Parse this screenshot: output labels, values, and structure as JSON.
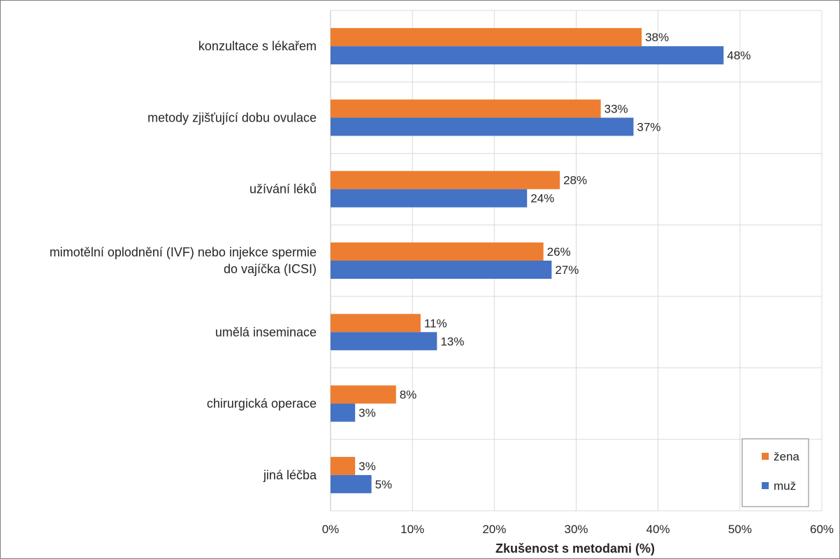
{
  "chart_data": {
    "type": "bar",
    "orientation": "horizontal",
    "title": "",
    "xlabel": "Zkušenost s metodami (%)",
    "ylabel": "",
    "xlim": [
      0,
      60
    ],
    "ticks": [
      0,
      10,
      20,
      30,
      40,
      50,
      60
    ],
    "tick_suffix": "%",
    "grid": true,
    "legend_position": "bottom-right",
    "categories": [
      [
        "konzultace s lékařem"
      ],
      [
        "metody zjišťující dobu ovulace"
      ],
      [
        "užívání léků"
      ],
      [
        "mimotělní oplodnění (IVF) nebo injekce spermie",
        "do vajíčka (ICSI)"
      ],
      [
        "umělá inseminace"
      ],
      [
        "chirurgická operace"
      ],
      [
        "jiná léčba"
      ]
    ],
    "series": [
      {
        "name": "žena",
        "color": "#ed7d31",
        "values": [
          38,
          33,
          28,
          26,
          11,
          8,
          3
        ]
      },
      {
        "name": "muž",
        "color": "#4472c4",
        "values": [
          48,
          37,
          24,
          27,
          13,
          3,
          5
        ]
      }
    ]
  }
}
